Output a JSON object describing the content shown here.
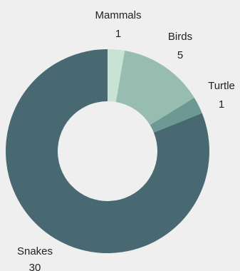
{
  "chart_data": {
    "type": "pie",
    "donut": true,
    "categories": [
      "Mammals",
      "Birds",
      "Turtle",
      "Snakes"
    ],
    "values": [
      1,
      5,
      1,
      30
    ],
    "colors": [
      "#c8e2d3",
      "#97bcb0",
      "#6d9893",
      "#486971"
    ],
    "labels": [
      {
        "name": "Mammals",
        "value": "1"
      },
      {
        "name": "Birds",
        "value": "5"
      },
      {
        "name": "Turtle",
        "value": "1"
      },
      {
        "name": "Snakes",
        "value": "30"
      }
    ],
    "start_angle_deg": 0,
    "direction": "clockwise",
    "legend": "none"
  }
}
